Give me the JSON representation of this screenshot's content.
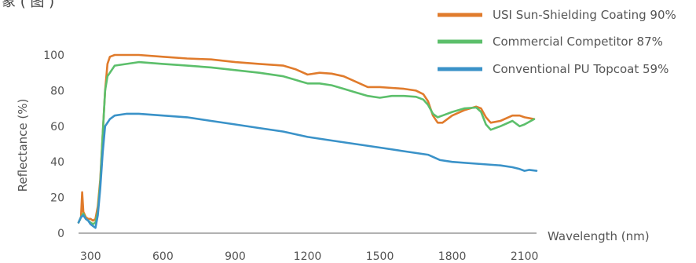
{
  "chart_data": {
    "type": "line",
    "title": "",
    "corner_text": "象 ( 图 )",
    "xlabel": "Wavelength (nm)",
    "ylabel": "Reflectance (%)",
    "xlim": [
      250,
      2150
    ],
    "ylim": [
      0,
      100
    ],
    "x_ticks": [
      300,
      600,
      900,
      1200,
      1500,
      1800,
      2100
    ],
    "y_ticks": [
      0,
      20,
      40,
      60,
      80,
      100
    ],
    "grid": false,
    "legend_position": "top-right",
    "series": [
      {
        "name": "USI Sun-Shielding Coating 90%",
        "color": "#e07b2c",
        "points": [
          [
            250,
            6
          ],
          [
            260,
            9
          ],
          [
            265,
            23
          ],
          [
            270,
            12
          ],
          [
            280,
            9
          ],
          [
            290,
            8
          ],
          [
            300,
            8
          ],
          [
            310,
            7
          ],
          [
            320,
            8
          ],
          [
            330,
            15
          ],
          [
            340,
            30
          ],
          [
            350,
            55
          ],
          [
            360,
            80
          ],
          [
            370,
            95
          ],
          [
            380,
            99
          ],
          [
            400,
            100
          ],
          [
            500,
            100
          ],
          [
            600,
            99
          ],
          [
            700,
            98
          ],
          [
            800,
            97.5
          ],
          [
            900,
            96
          ],
          [
            1000,
            95
          ],
          [
            1100,
            94
          ],
          [
            1150,
            92
          ],
          [
            1200,
            89
          ],
          [
            1250,
            90
          ],
          [
            1300,
            89.5
          ],
          [
            1350,
            88
          ],
          [
            1400,
            85
          ],
          [
            1450,
            82
          ],
          [
            1500,
            82
          ],
          [
            1550,
            81.5
          ],
          [
            1600,
            81
          ],
          [
            1650,
            80
          ],
          [
            1680,
            78
          ],
          [
            1700,
            74
          ],
          [
            1720,
            66
          ],
          [
            1740,
            62
          ],
          [
            1760,
            62
          ],
          [
            1800,
            66
          ],
          [
            1850,
            69
          ],
          [
            1900,
            71
          ],
          [
            1920,
            70
          ],
          [
            1940,
            65
          ],
          [
            1960,
            62
          ],
          [
            2000,
            63
          ],
          [
            2050,
            66
          ],
          [
            2080,
            66
          ],
          [
            2100,
            65
          ],
          [
            2140,
            64
          ]
        ]
      },
      {
        "name": "Commercial Competitor 87%",
        "color": "#5cbf6b",
        "points": [
          [
            250,
            6
          ],
          [
            260,
            9
          ],
          [
            270,
            11
          ],
          [
            280,
            8
          ],
          [
            290,
            7
          ],
          [
            300,
            6
          ],
          [
            310,
            5
          ],
          [
            320,
            6
          ],
          [
            330,
            12
          ],
          [
            340,
            28
          ],
          [
            350,
            55
          ],
          [
            360,
            80
          ],
          [
            370,
            88
          ],
          [
            400,
            94
          ],
          [
            500,
            96
          ],
          [
            600,
            95
          ],
          [
            700,
            94
          ],
          [
            800,
            93
          ],
          [
            900,
            91.5
          ],
          [
            1000,
            90
          ],
          [
            1100,
            88
          ],
          [
            1150,
            86
          ],
          [
            1200,
            84
          ],
          [
            1250,
            84
          ],
          [
            1300,
            83
          ],
          [
            1350,
            81
          ],
          [
            1400,
            79
          ],
          [
            1450,
            77
          ],
          [
            1500,
            76
          ],
          [
            1550,
            77
          ],
          [
            1600,
            77
          ],
          [
            1650,
            76.5
          ],
          [
            1680,
            75
          ],
          [
            1700,
            72
          ],
          [
            1720,
            67
          ],
          [
            1740,
            65
          ],
          [
            1760,
            66
          ],
          [
            1800,
            68
          ],
          [
            1850,
            70
          ],
          [
            1900,
            70.5
          ],
          [
            1920,
            68
          ],
          [
            1940,
            61
          ],
          [
            1960,
            58
          ],
          [
            2000,
            60
          ],
          [
            2050,
            63
          ],
          [
            2080,
            60
          ],
          [
            2100,
            61
          ],
          [
            2140,
            64
          ]
        ]
      },
      {
        "name": "Conventional PU Topcoat 59%",
        "color": "#3a92c8",
        "points": [
          [
            250,
            6
          ],
          [
            260,
            9
          ],
          [
            270,
            10
          ],
          [
            280,
            8
          ],
          [
            290,
            7
          ],
          [
            300,
            5
          ],
          [
            310,
            4
          ],
          [
            320,
            3
          ],
          [
            330,
            10
          ],
          [
            340,
            25
          ],
          [
            350,
            45
          ],
          [
            360,
            60
          ],
          [
            380,
            64
          ],
          [
            400,
            66
          ],
          [
            450,
            67
          ],
          [
            500,
            67
          ],
          [
            600,
            66
          ],
          [
            700,
            65
          ],
          [
            800,
            63
          ],
          [
            900,
            61
          ],
          [
            1000,
            59
          ],
          [
            1100,
            57
          ],
          [
            1200,
            54
          ],
          [
            1300,
            52
          ],
          [
            1400,
            50
          ],
          [
            1500,
            48
          ],
          [
            1600,
            46
          ],
          [
            1700,
            44
          ],
          [
            1750,
            41
          ],
          [
            1800,
            40
          ],
          [
            1900,
            39
          ],
          [
            2000,
            38
          ],
          [
            2050,
            37
          ],
          [
            2080,
            36
          ],
          [
            2100,
            35
          ],
          [
            2120,
            35.5
          ],
          [
            2150,
            35
          ]
        ]
      }
    ]
  }
}
